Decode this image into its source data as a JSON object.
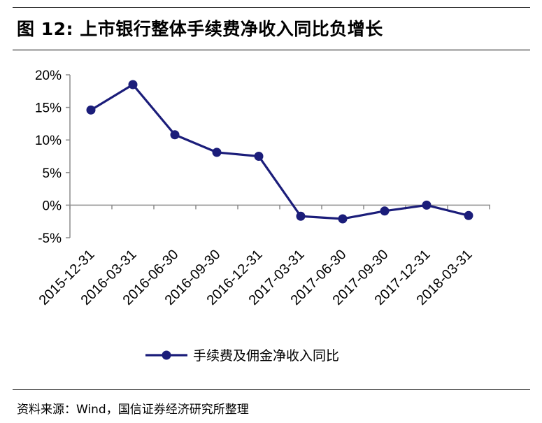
{
  "header": {
    "fig_label": "图 12:",
    "title": "上市银行整体手续费净收入同比负增长"
  },
  "footer": {
    "source": "资料来源：Wind，国信证券经济研究所整理"
  },
  "colors": {
    "series": "#1b1d7a",
    "axis": "#8c8c8c"
  },
  "chart_data": {
    "type": "line",
    "categories": [
      "2015-12-31",
      "2016-03-31",
      "2016-06-30",
      "2016-09-30",
      "2016-12-31",
      "2017-03-31",
      "2017-06-30",
      "2017-09-30",
      "2017-12-31",
      "2018-03-31"
    ],
    "series": [
      {
        "name": "手续费及佣金净收入同比",
        "values": [
          14.6,
          18.5,
          10.8,
          8.1,
          7.5,
          -1.7,
          -2.1,
          -0.9,
          0.0,
          -1.6
        ]
      }
    ],
    "ylim": [
      -5,
      20
    ],
    "yticks": [
      -5,
      0,
      5,
      10,
      15,
      20
    ],
    "ytick_labels": [
      "-5%",
      "0%",
      "5%",
      "10%",
      "15%",
      "20%"
    ],
    "grid": false,
    "legend_position": "bottom"
  }
}
